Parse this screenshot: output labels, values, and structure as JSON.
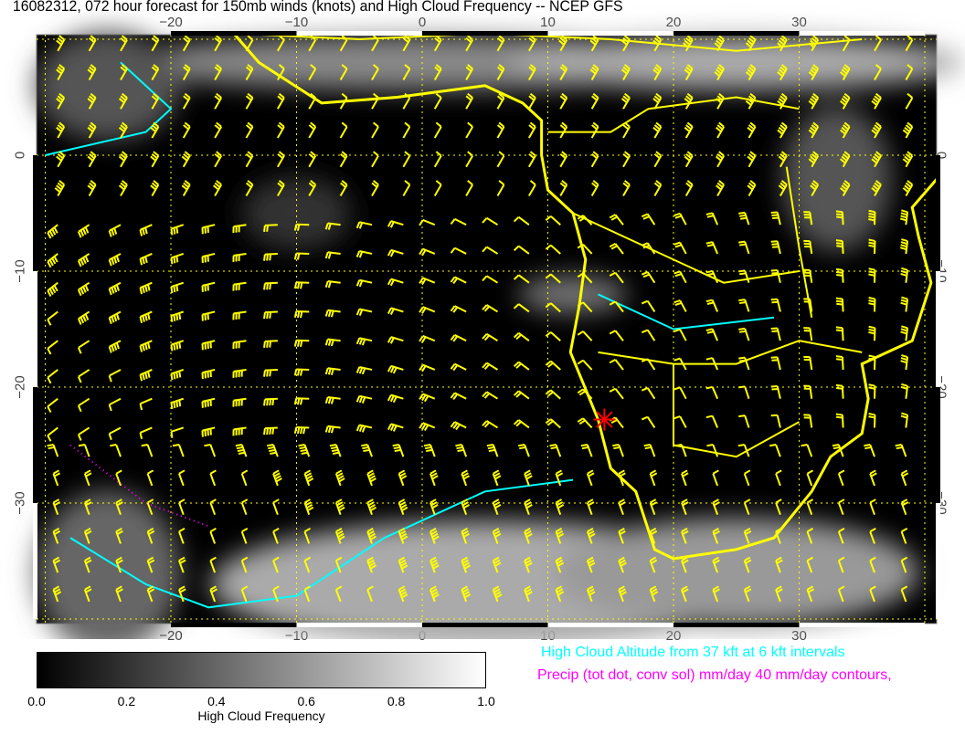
{
  "title": "16082312, 072 hour forecast for 150mb winds (knots) and High Cloud Frequency -- NCEP GFS",
  "map": {
    "lon_ticks": [
      "−20",
      "−10",
      "0",
      "10",
      "20",
      "30"
    ],
    "lon_values": [
      -20,
      -10,
      0,
      10,
      20,
      30
    ],
    "lat_ticks": [
      "0",
      "−10",
      "−20",
      "−30"
    ],
    "lat_values": [
      0,
      -10,
      -20,
      -30
    ],
    "extent": {
      "lon": [
        -31,
        41
      ],
      "lat": [
        -40.5,
        10.5
      ]
    },
    "marker": {
      "lon": 14.5,
      "lat": -22.8,
      "color": "#ff0000",
      "icon": "asterisk-marker"
    },
    "colors": {
      "background": "#000000",
      "barbs": "#ffff00",
      "coast": "#ffff00",
      "cloud_altitude": "#00ffff",
      "precip": "#ff00ff",
      "grid": "#ffff00"
    }
  },
  "colorbar": {
    "labels": [
      "0.0",
      "0.2",
      "0.4",
      "0.6",
      "0.8",
      "1.0"
    ],
    "values": [
      0,
      0.2,
      0.4,
      0.6,
      0.8,
      1.0
    ],
    "title": "High Cloud Frequency"
  },
  "legend": {
    "cloud_altitude": "High Cloud Altitude from 37 kft at 6 kft intervals",
    "precip": "Precip (tot dot, conv sol) mm/day 40 mm/day contours,"
  }
}
